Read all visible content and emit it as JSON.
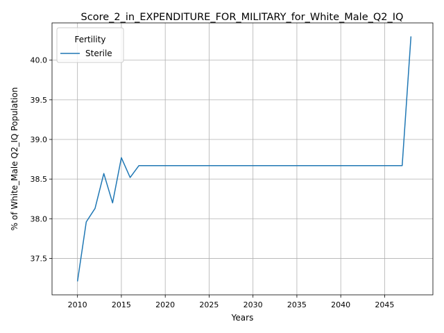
{
  "chart_data": {
    "type": "line",
    "title": "Score_2_in_EXPENDITURE_FOR_MILITARY_for_White_Male_Q2_IQ",
    "xlabel": "Years",
    "ylabel": "% of White_Male Q2_IQ Population",
    "xlim": [
      2007.1,
      2050.5
    ],
    "ylim": [
      37.04,
      40.47
    ],
    "xticks": [
      2010,
      2015,
      2020,
      2025,
      2030,
      2035,
      2040,
      2045
    ],
    "yticks": [
      37.5,
      38.0,
      38.5,
      39.0,
      39.5,
      40.0
    ],
    "grid": true,
    "legend": {
      "title": "Fertility",
      "placement": "top-left"
    },
    "series": [
      {
        "name": "Sterile",
        "color": "#1f77b4",
        "x": [
          2010,
          2011,
          2012,
          2013,
          2014,
          2015,
          2016,
          2017,
          2018,
          2019,
          2020,
          2021,
          2022,
          2023,
          2024,
          2025,
          2026,
          2027,
          2028,
          2029,
          2030,
          2031,
          2032,
          2033,
          2034,
          2035,
          2036,
          2037,
          2038,
          2039,
          2040,
          2041,
          2042,
          2043,
          2044,
          2045,
          2046,
          2047,
          2048
        ],
        "y": [
          37.21,
          37.96,
          38.13,
          38.57,
          38.2,
          38.77,
          38.52,
          38.67,
          38.67,
          38.67,
          38.67,
          38.67,
          38.67,
          38.67,
          38.67,
          38.67,
          38.67,
          38.67,
          38.67,
          38.67,
          38.67,
          38.67,
          38.67,
          38.67,
          38.67,
          38.67,
          38.67,
          38.67,
          38.67,
          38.67,
          38.67,
          38.67,
          38.67,
          38.67,
          38.67,
          38.67,
          38.67,
          38.67,
          40.3
        ]
      }
    ]
  }
}
